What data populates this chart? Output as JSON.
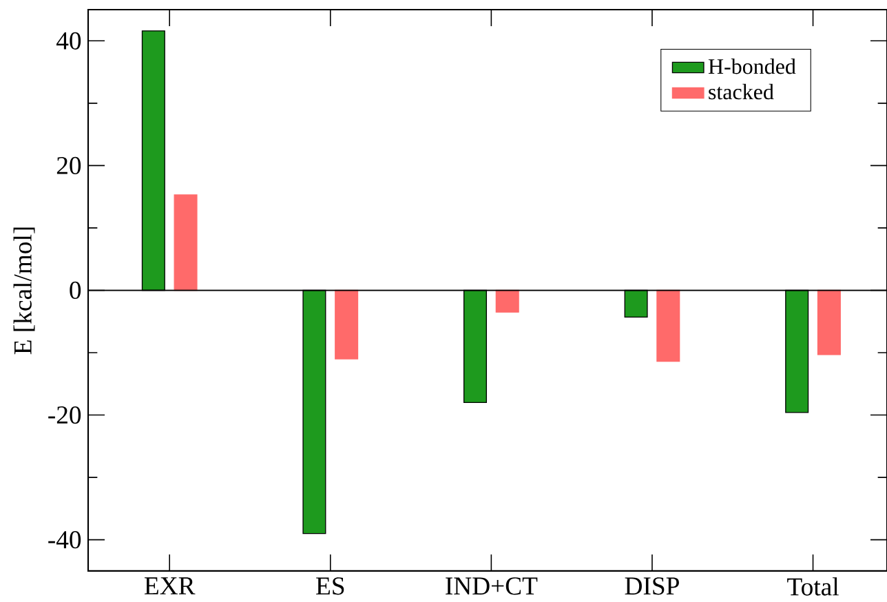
{
  "chart_data": {
    "type": "bar",
    "ylabel": "E [kcal/mol]",
    "categories": [
      "EXR",
      "ES",
      "IND+CT",
      "DISP",
      "Total"
    ],
    "series": [
      {
        "name": "H-bonded",
        "color": "#1e9a1e",
        "values": [
          41.6,
          -39.0,
          -18.0,
          -4.3,
          -19.6
        ]
      },
      {
        "name": "stacked",
        "color": "#ff6a6a",
        "values": [
          15.3,
          -11.0,
          -3.5,
          -11.4,
          -10.3
        ]
      }
    ],
    "ylim": [
      -45,
      45
    ],
    "yticks": [
      -40,
      -20,
      0,
      20,
      40
    ],
    "legend": "top right"
  }
}
